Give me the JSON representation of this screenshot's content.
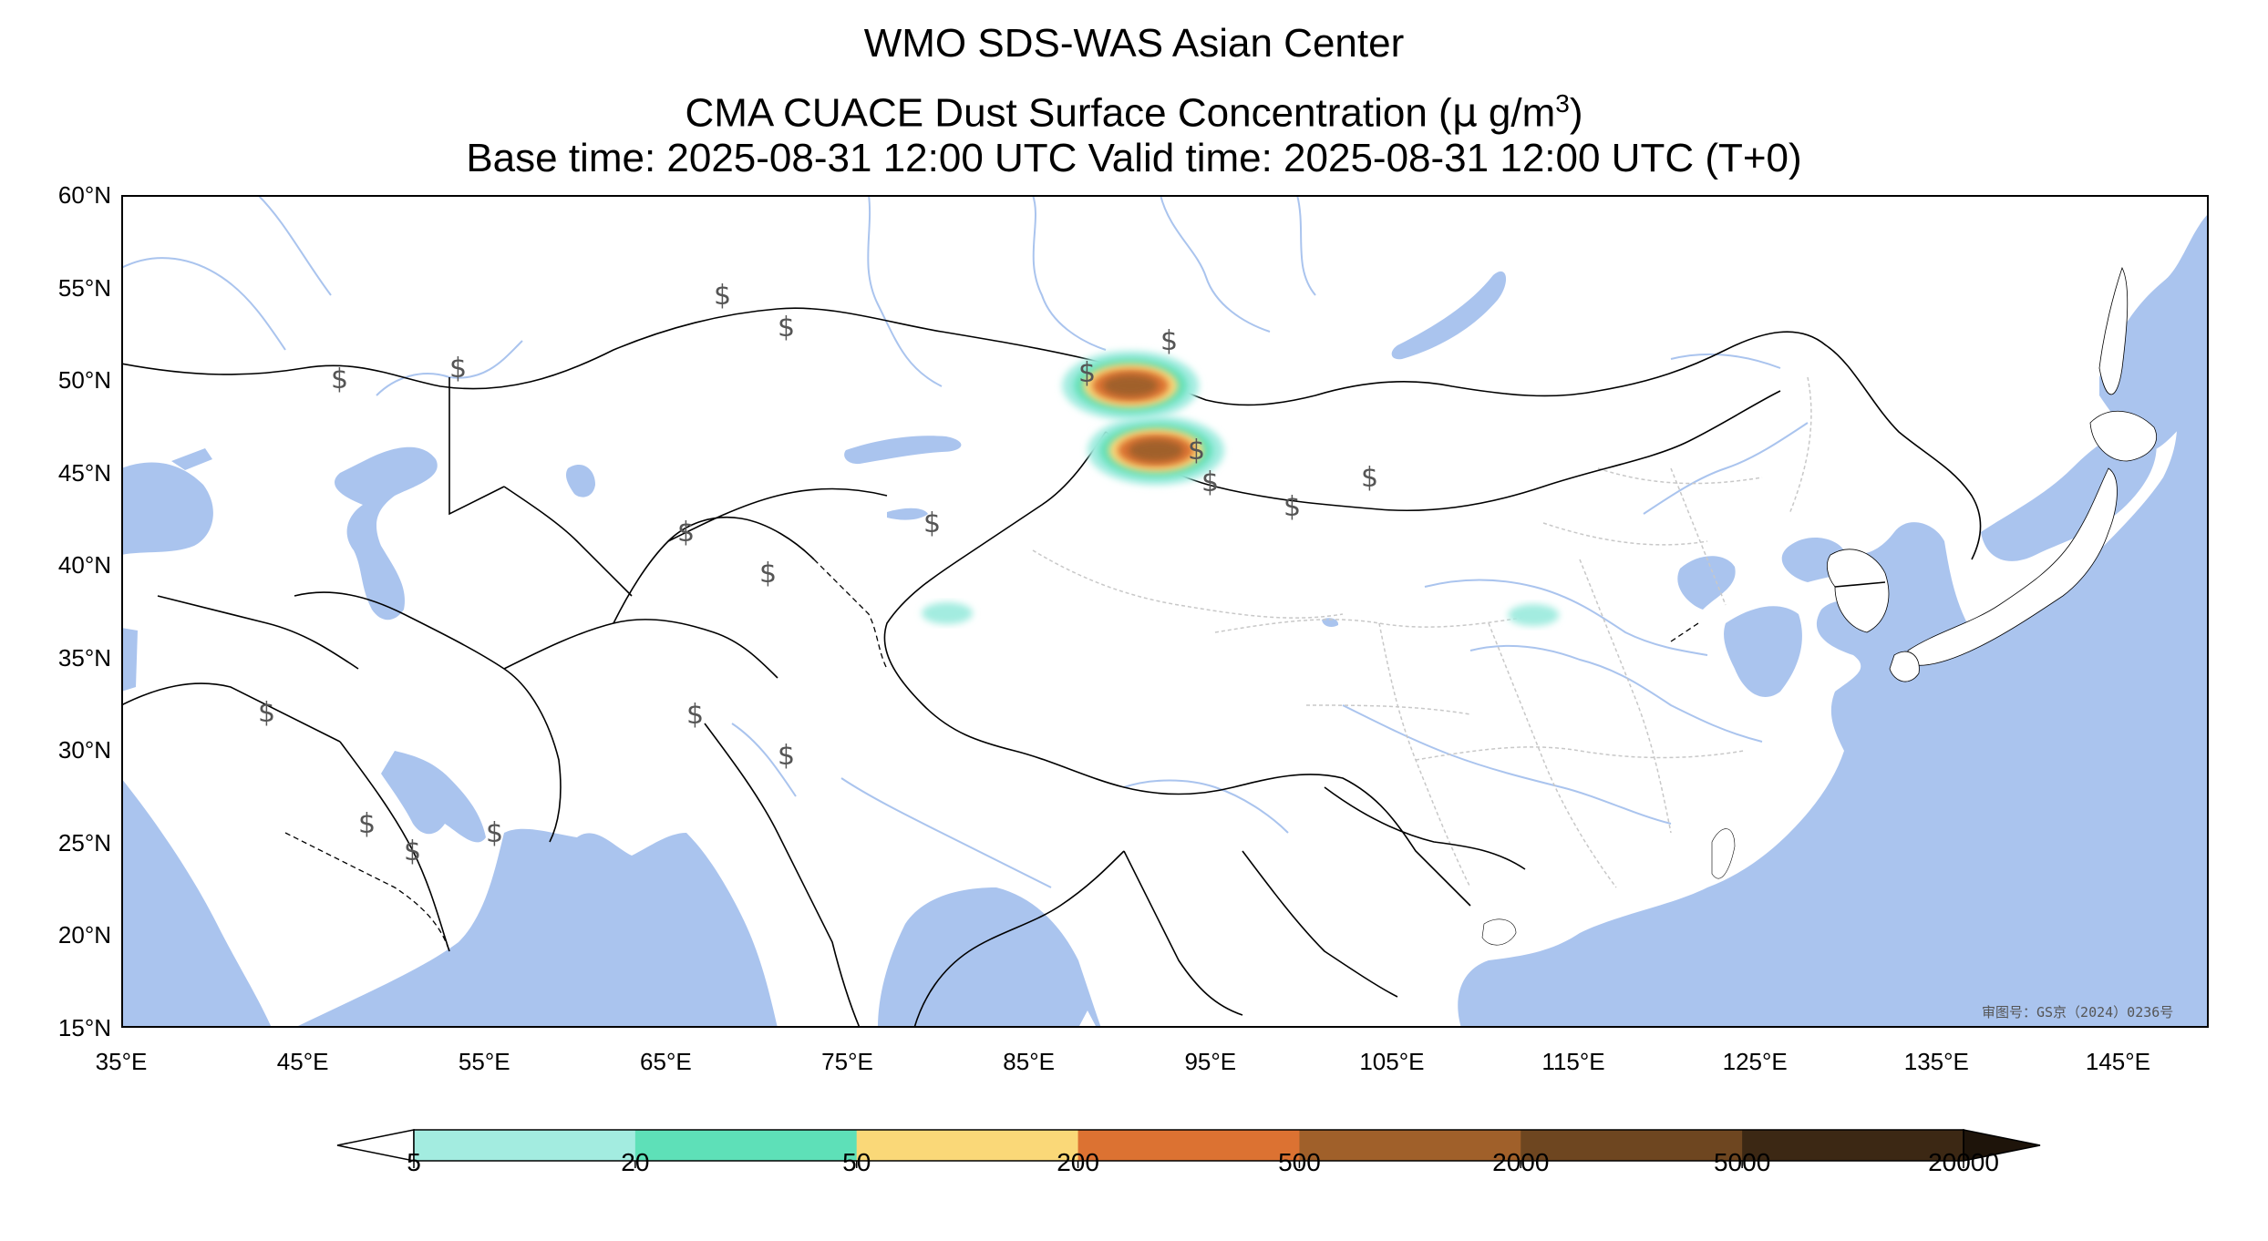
{
  "title": {
    "line1": "WMO SDS-WAS Asian Center",
    "line2": "CMA CUACE Dust Surface Concentration (",
    "line2_mu": "μ",
    "line2_unit": " g/m",
    "line2_sup": "3",
    "line2_close": ")",
    "line3": "Base time: 2025-08-31 12:00 UTC Valid time: 2025-08-31 12:00 UTC (T+0)"
  },
  "map": {
    "lon_range": [
      35,
      150
    ],
    "lat_range": [
      15,
      60
    ],
    "lat_ticks": [
      {
        "value": 60,
        "label": "60°N"
      },
      {
        "value": 55,
        "label": "55°N"
      },
      {
        "value": 50,
        "label": "50°N"
      },
      {
        "value": 45,
        "label": "45°N"
      },
      {
        "value": 40,
        "label": "40°N"
      },
      {
        "value": 35,
        "label": "35°N"
      },
      {
        "value": 30,
        "label": "30°N"
      },
      {
        "value": 25,
        "label": "25°N"
      },
      {
        "value": 20,
        "label": "20°N"
      },
      {
        "value": 15,
        "label": "15°N"
      }
    ],
    "lon_ticks": [
      {
        "value": 35,
        "label": "35°E"
      },
      {
        "value": 45,
        "label": "45°E"
      },
      {
        "value": 55,
        "label": "55°E"
      },
      {
        "value": 65,
        "label": "65°E"
      },
      {
        "value": 75,
        "label": "75°E"
      },
      {
        "value": 85,
        "label": "85°E"
      },
      {
        "value": 95,
        "label": "95°E"
      },
      {
        "value": 105,
        "label": "105°E"
      },
      {
        "value": 115,
        "label": "115°E"
      },
      {
        "value": 125,
        "label": "125°E"
      },
      {
        "value": 135,
        "label": "135°E"
      },
      {
        "value": 145,
        "label": "145°E"
      }
    ],
    "colors": {
      "water": "#aac4ee",
      "land": "#ffffff",
      "border": "#000000",
      "river": "#aac4ee",
      "province": "#c8c8c8"
    },
    "approval_number": "审图号：GS京（2024）0236号"
  },
  "colorbar": {
    "levels": [
      "5",
      "20",
      "50",
      "200",
      "500",
      "2000",
      "5000",
      "20000"
    ],
    "colors": [
      "#a3ece0",
      "#5ee0b8",
      "#fad878",
      "#dc7232",
      "#a0602a",
      "#6e4620",
      "#3c2814"
    ],
    "under_color": "#ffffff",
    "over_color": "#1e140a"
  },
  "dust_patches": [
    {
      "lon": 92.0,
      "lat": 46.2,
      "level": 1
    },
    {
      "lon": 90.6,
      "lat": 49.7,
      "level": 1
    },
    {
      "lon": 80.5,
      "lat": 37.4,
      "level": 0
    },
    {
      "lon": 112.8,
      "lat": 37.3,
      "level": 0
    }
  ]
}
